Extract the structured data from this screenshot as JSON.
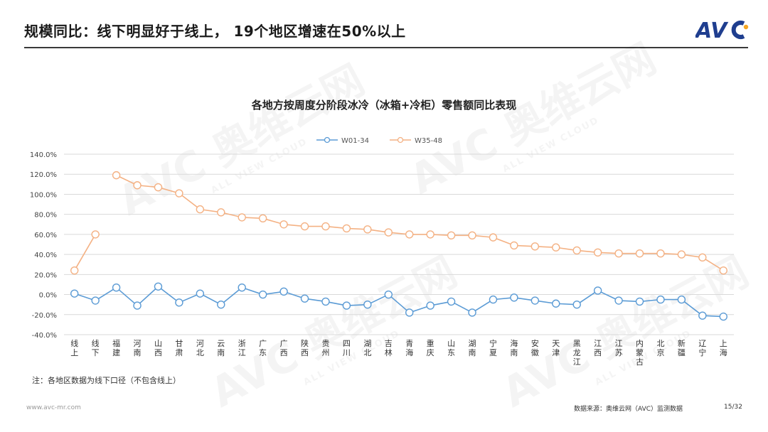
{
  "header": {
    "title": "规模同比：线下明显好于线上， 19个地区增速在50%以上",
    "logo_text": "AVC"
  },
  "watermark": {
    "text": "AVC 奥维云网",
    "subtext": "ALL VIEW CLOUD"
  },
  "chart_data": {
    "type": "line",
    "title": "各地方按周度分阶段冰冷（冰箱+冷柜）零售额同比表现",
    "categories": [
      "线上",
      "线下",
      "福建",
      "河南",
      "山西",
      "甘肃",
      "河北",
      "云南",
      "浙江",
      "广东",
      "广西",
      "陕西",
      "贵州",
      "四川",
      "湖北",
      "吉林",
      "青海",
      "重庆",
      "山东",
      "湖南",
      "宁夏",
      "海南",
      "安徽",
      "天津",
      "黑龙江",
      "江西",
      "江苏",
      "内蒙古",
      "北京",
      "新疆",
      "辽宁",
      "上海"
    ],
    "series": [
      {
        "name": "W01-34",
        "color": "#5b9bd5",
        "values": [
          1,
          -6,
          7,
          -11,
          8,
          -8,
          1,
          -10,
          7,
          0,
          3,
          -4,
          -7,
          -11,
          -10,
          0,
          -18,
          -11,
          -7,
          -18,
          -5,
          -3,
          -6,
          -9,
          -10,
          4,
          -6,
          -7,
          -5,
          -5,
          -21,
          -22
        ]
      },
      {
        "name": "W35-48",
        "color": "#f4b183",
        "values": [
          24,
          60,
          null,
          null,
          null,
          null,
          null,
          null,
          null,
          null,
          null,
          null,
          null,
          null,
          null,
          null,
          null,
          null,
          null,
          null,
          null,
          null,
          null,
          null,
          null,
          null,
          null,
          null,
          null,
          null,
          null,
          null
        ],
        "values_regional": [
          null,
          null,
          119,
          109,
          107,
          101,
          85,
          82,
          77,
          76,
          70,
          68,
          68,
          66,
          65,
          62,
          60,
          60,
          59,
          59,
          57,
          49,
          48,
          47,
          44,
          42,
          41,
          41,
          41,
          40,
          37,
          24
        ]
      }
    ],
    "y_ticks": [
      "140.0%",
      "120.0%",
      "100.0%",
      "80.0%",
      "60.0%",
      "40.0%",
      "20.0%",
      "0.0%",
      "-20.0%",
      "-40.0%"
    ],
    "ylim": [
      -40,
      140
    ],
    "grid": true,
    "legend": "top-center"
  },
  "footer": {
    "note": "注：各地区数据为线下口径（不包含线上）",
    "website": "www.avc-mr.com",
    "source": "数据来源：奥维云网（AVC）监测数据",
    "page": "15/32"
  }
}
